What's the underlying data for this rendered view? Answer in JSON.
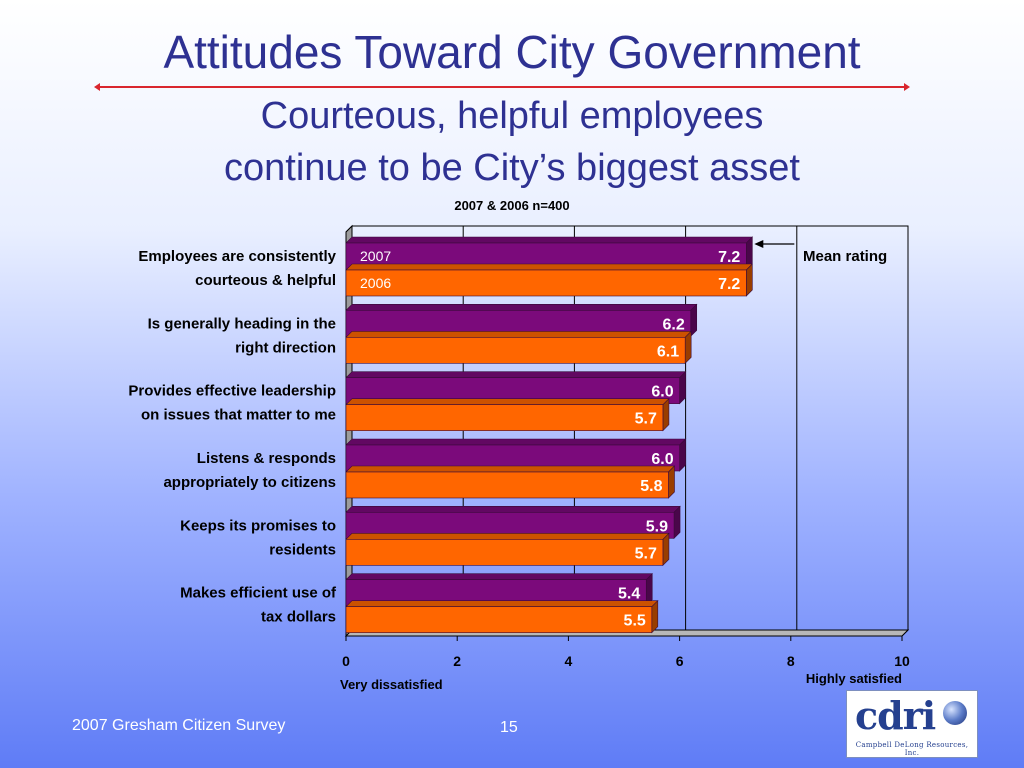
{
  "slide": {
    "title": "Attitudes Toward City Government",
    "subtitle_line1": "Courteous, helpful employees",
    "subtitle_line2": "continue to be City’s biggest asset",
    "sample_note": "2007 & 2006 n=400",
    "footer_text": "2007 Gresham Citizen Survey",
    "page_number": "15",
    "logo_text": "cdri",
    "logo_caption": "Campbell DeLong Resources, Inc."
  },
  "colors": {
    "series_2007": "#7b0a7b",
    "series_2006": "#ff6600",
    "title": "#2e3192"
  },
  "chart_data": {
    "type": "bar",
    "orientation": "horizontal",
    "categories": [
      [
        "Employees are consistently",
        "courteous & helpful"
      ],
      [
        "Is generally heading in the",
        "right direction"
      ],
      [
        "Provides effective leadership",
        "on issues that matter to me"
      ],
      [
        "Listens & responds",
        "appropriately to citizens"
      ],
      [
        "Keeps its promises to",
        "residents"
      ],
      [
        "Makes efficient use of",
        "tax dollars"
      ]
    ],
    "series": [
      {
        "name": "2007",
        "values": [
          7.2,
          6.2,
          6.0,
          6.0,
          5.9,
          5.4
        ]
      },
      {
        "name": "2006",
        "values": [
          7.2,
          6.1,
          5.7,
          5.8,
          5.7,
          5.5
        ]
      }
    ],
    "data_labels": [
      [
        "7.2",
        "6.2",
        "6.0",
        "6.0",
        "5.9",
        "5.4"
      ],
      [
        "7.2",
        "6.1",
        "5.7",
        "5.8",
        "5.7",
        "5.5"
      ]
    ],
    "xlim": [
      0,
      10
    ],
    "xticks": [
      "0",
      "2",
      "4",
      "6",
      "8",
      "10"
    ],
    "x_low_label": "Very dissatisfied",
    "x_high_label": "Highly satisfied",
    "annotation": "Mean rating",
    "grid": true,
    "legend": "inside first bars"
  }
}
